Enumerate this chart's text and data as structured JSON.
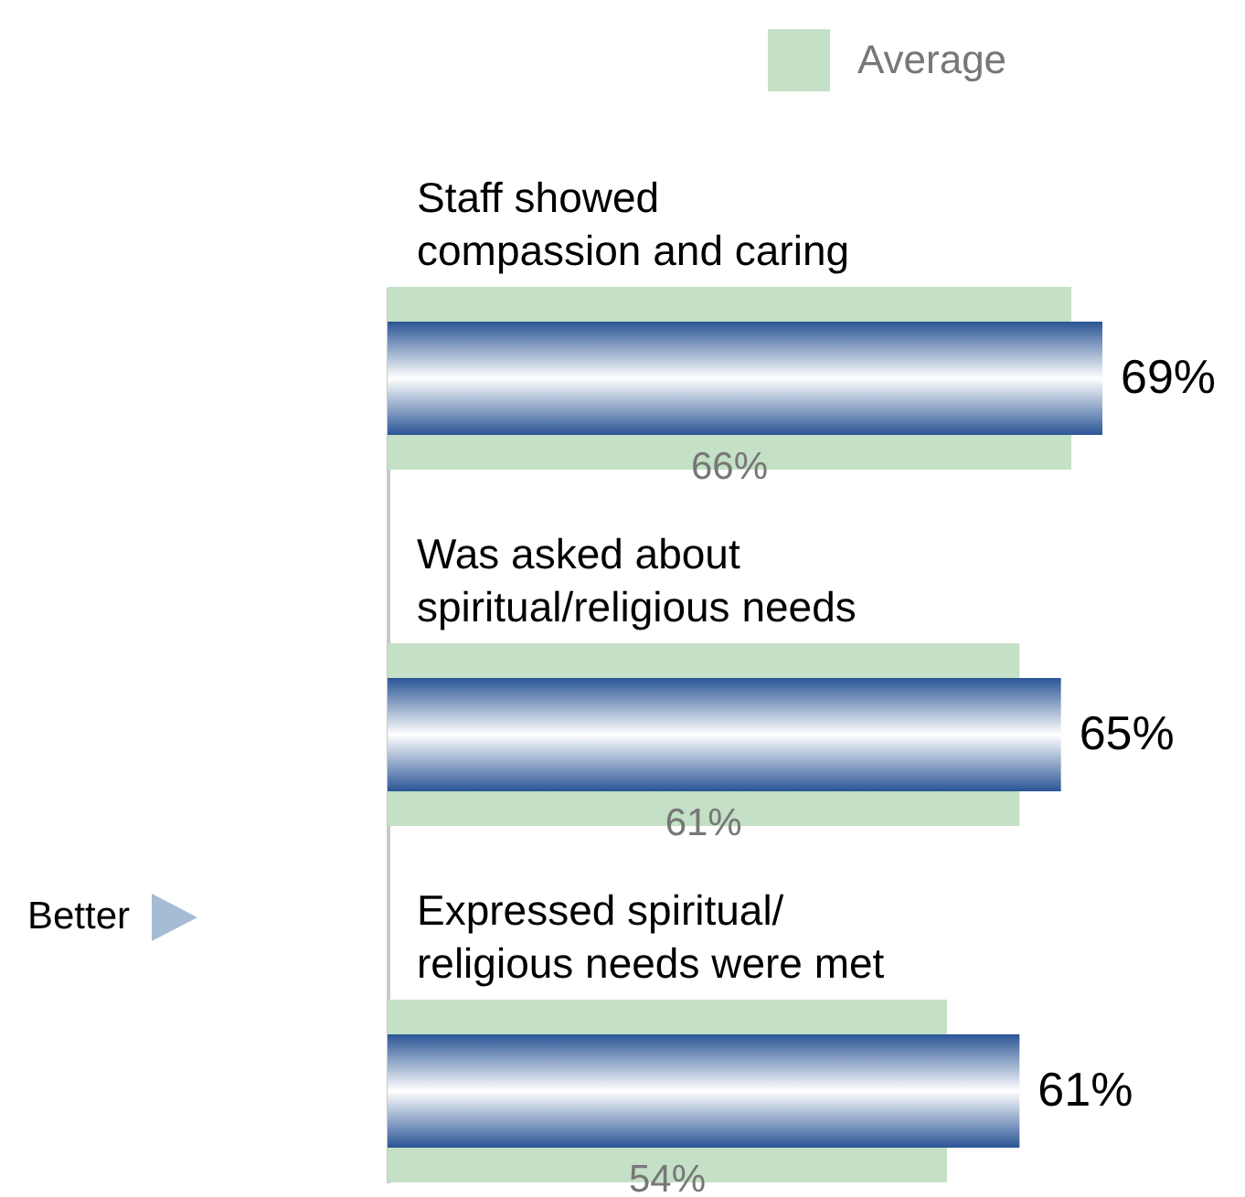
{
  "chart_data": {
    "type": "bar",
    "orientation": "horizontal",
    "categories": [
      "Staff showed\ncompassion and caring",
      "Was asked about\nspiritual/religious needs",
      "Expressed spiritual/\nreligious needs were met"
    ],
    "series": [
      {
        "color": "#2a5595",
        "values": [
          69,
          65,
          61
        ],
        "value_labels": [
          "69%",
          "65%",
          "61%"
        ]
      },
      {
        "name": "Average",
        "color": "#c4e0c6",
        "values": [
          66,
          61,
          54
        ],
        "value_labels": [
          "66%",
          "61%",
          "54%"
        ]
      }
    ],
    "legend": "top",
    "annotations": [
      "Better"
    ]
  }
}
